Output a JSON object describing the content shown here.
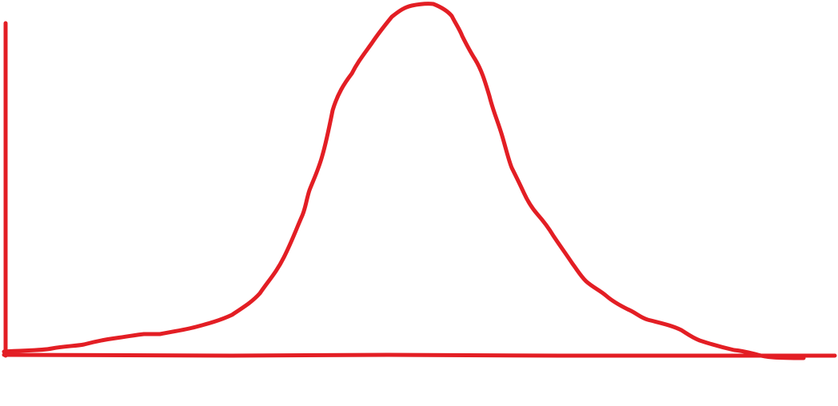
{
  "drawing": {
    "stroke_color": "#e31e24",
    "background_color": "#ffffff"
  }
}
